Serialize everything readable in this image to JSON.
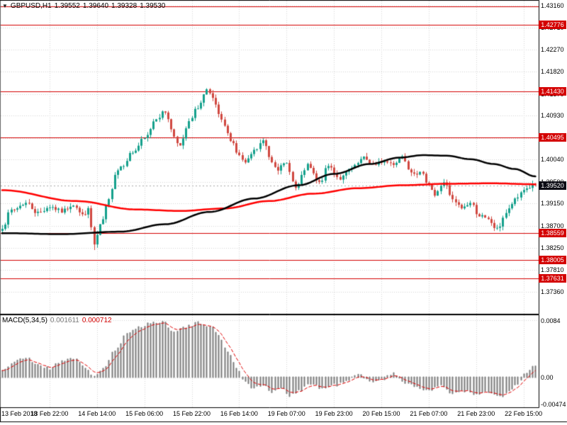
{
  "quote": {
    "symbol": "GBPUSD,H1",
    "open": "1.39552",
    "high": "1.39640",
    "low": "1.39328",
    "close": "1.39530",
    "bid": "1.39520"
  },
  "chart_data": {
    "type": "candlestick",
    "title": "GBPUSD,H1",
    "timeframe": "H1",
    "bars": 181,
    "x_label_step": 16,
    "x_labels": [
      "13 Feb 2018",
      "13 Feb 22:00",
      "14 Feb 14:00",
      "15 Feb 06:00",
      "15 Feb 22:00",
      "16 Feb 14:00",
      "19 Feb 07:00",
      "19 Feb 23:00",
      "20 Feb 15:00",
      "21 Feb 07:00",
      "21 Feb 23:00",
      "22 Feb 15:00"
    ],
    "price_axis_ticks": [
      "1.43160",
      "1.42710",
      "1.42270",
      "1.41820",
      "1.41370",
      "1.40930",
      "1.40480",
      "1.40040",
      "1.39590",
      "1.39150",
      "1.38700",
      "1.38250",
      "1.37810",
      "1.37360"
    ],
    "levels": [
      {
        "price": 1.43145,
        "label": ""
      },
      {
        "price": 1.42776,
        "label": "1.42776"
      },
      {
        "price": 1.4143,
        "label": "1.41430"
      },
      {
        "price": 1.40495,
        "label": "1.40495"
      },
      {
        "price": 1.38559,
        "label": "1.38559"
      },
      {
        "price": 1.38005,
        "label": "1.38005"
      },
      {
        "price": 1.37631,
        "label": "1.37631"
      }
    ],
    "bid_price": 1.3952,
    "candle_waypoints": [
      [
        0,
        1.3868
      ],
      [
        3,
        1.3901
      ],
      [
        8,
        1.3916
      ],
      [
        12,
        1.3896
      ],
      [
        16,
        1.3909
      ],
      [
        20,
        1.3899
      ],
      [
        24,
        1.3914
      ],
      [
        27,
        1.3891
      ],
      [
        29,
        1.3902
      ],
      [
        31,
        1.3831
      ],
      [
        33,
        1.3869
      ],
      [
        36,
        1.3921
      ],
      [
        38,
        1.3976
      ],
      [
        40,
        1.3991
      ],
      [
        44,
        1.4019
      ],
      [
        48,
        1.4046
      ],
      [
        52,
        1.4089
      ],
      [
        55,
        1.4101
      ],
      [
        58,
        1.4052
      ],
      [
        60,
        1.4031
      ],
      [
        63,
        1.4079
      ],
      [
        66,
        1.4111
      ],
      [
        69,
        1.4143
      ],
      [
        71,
        1.4126
      ],
      [
        74,
        1.4081
      ],
      [
        77,
        1.4046
      ],
      [
        80,
        1.4011
      ],
      [
        82,
        1.3996
      ],
      [
        85,
        1.4021
      ],
      [
        88,
        1.4041
      ],
      [
        91,
        1.4001
      ],
      [
        93,
        1.3986
      ],
      [
        96,
        1.3996
      ],
      [
        99,
        1.3946
      ],
      [
        103,
        1.3991
      ],
      [
        107,
        1.3956
      ],
      [
        110,
        1.3991
      ],
      [
        114,
        1.3966
      ],
      [
        118,
        1.3986
      ],
      [
        122,
        1.4006
      ],
      [
        126,
        1.3991
      ],
      [
        128,
        1.4001
      ],
      [
        132,
        1.3996
      ],
      [
        135,
        1.4011
      ],
      [
        138,
        1.3981
      ],
      [
        141,
        1.3976
      ],
      [
        144,
        1.3956
      ],
      [
        146,
        1.3931
      ],
      [
        149,
        1.3959
      ],
      [
        152,
        1.3921
      ],
      [
        155,
        1.3906
      ],
      [
        158,
        1.3916
      ],
      [
        161,
        1.3891
      ],
      [
        164,
        1.3881
      ],
      [
        167,
        1.3862
      ],
      [
        170,
        1.3896
      ],
      [
        173,
        1.3921
      ],
      [
        176,
        1.3944
      ],
      [
        180,
        1.3953
      ]
    ],
    "moving_averages": [
      {
        "name": "ma-red-slow",
        "color": "#ff0000",
        "waypoints": [
          [
            0,
            1.3942
          ],
          [
            25,
            1.392
          ],
          [
            45,
            1.3903
          ],
          [
            60,
            1.39
          ],
          [
            75,
            1.3905
          ],
          [
            90,
            1.392
          ],
          [
            105,
            1.3935
          ],
          [
            120,
            1.3946
          ],
          [
            135,
            1.3952
          ],
          [
            150,
            1.3955
          ],
          [
            165,
            1.3956
          ],
          [
            180,
            1.3954
          ]
        ]
      },
      {
        "name": "ma-black",
        "color": "#000000",
        "waypoints": [
          [
            0,
            1.3855
          ],
          [
            20,
            1.3853
          ],
          [
            40,
            1.3858
          ],
          [
            55,
            1.3873
          ],
          [
            70,
            1.3898
          ],
          [
            85,
            1.3925
          ],
          [
            100,
            1.3952
          ],
          [
            112,
            1.3975
          ],
          [
            124,
            1.3995
          ],
          [
            134,
            1.4008
          ],
          [
            142,
            1.4013
          ],
          [
            150,
            1.4012
          ],
          [
            158,
            1.4005
          ],
          [
            166,
            1.3995
          ],
          [
            173,
            1.3985
          ],
          [
            180,
            1.397
          ]
        ]
      }
    ],
    "macd": {
      "label": "MACD(5,34,5)",
      "main_value": "0.001611",
      "signal_value": "0.000712",
      "axis_ticks": [
        "0.0084",
        "0.00",
        "-0.00474"
      ],
      "axis_tick_values": [
        0.0084,
        0,
        -0.00474
      ],
      "waypoints": [
        [
          0,
          0.001
        ],
        [
          4,
          0.0022
        ],
        [
          8,
          0.0028
        ],
        [
          12,
          0.0018
        ],
        [
          16,
          0.0012
        ],
        [
          20,
          0.0024
        ],
        [
          24,
          0.0028
        ],
        [
          28,
          0.0012
        ],
        [
          31,
          0.0002
        ],
        [
          34,
          0.0012
        ],
        [
          38,
          0.0038
        ],
        [
          42,
          0.0062
        ],
        [
          46,
          0.0074
        ],
        [
          50,
          0.0079
        ],
        [
          54,
          0.0081
        ],
        [
          58,
          0.0068
        ],
        [
          62,
          0.0073
        ],
        [
          66,
          0.0079
        ],
        [
          70,
          0.0076
        ],
        [
          73,
          0.006
        ],
        [
          76,
          0.0038
        ],
        [
          79,
          0.0014
        ],
        [
          82,
          -0.0006
        ],
        [
          85,
          -0.0016
        ],
        [
          88,
          -0.0011
        ],
        [
          91,
          -0.0021
        ],
        [
          94,
          -0.0016
        ],
        [
          97,
          -0.0026
        ],
        [
          100,
          -0.0019
        ],
        [
          104,
          -0.0009
        ],
        [
          108,
          -0.0016
        ],
        [
          112,
          -0.0011
        ],
        [
          116,
          -0.0006
        ],
        [
          120,
          0.0003
        ],
        [
          124,
          -0.0005
        ],
        [
          128,
          -0.0002
        ],
        [
          132,
          0.0004
        ],
        [
          136,
          -0.0007
        ],
        [
          140,
          -0.0013
        ],
        [
          144,
          -0.0021
        ],
        [
          148,
          -0.0011
        ],
        [
          152,
          -0.0023
        ],
        [
          156,
          -0.0019
        ],
        [
          160,
          -0.0026
        ],
        [
          164,
          -0.0021
        ],
        [
          168,
          -0.0029
        ],
        [
          171,
          -0.0021
        ],
        [
          174,
          -0.0009
        ],
        [
          177,
          0.0007
        ],
        [
          180,
          0.0016
        ]
      ]
    },
    "colors": {
      "up_candle": "#14a08c",
      "down_candle": "#d04840",
      "level_line": "#d40000",
      "level_tag_bg": "#d40000",
      "bid_tag_bg": "#0b0b14",
      "histogram": "#7a7a7a",
      "signal_line": "#e00000",
      "grid": "#d6d6d6",
      "border": "#000000"
    }
  }
}
